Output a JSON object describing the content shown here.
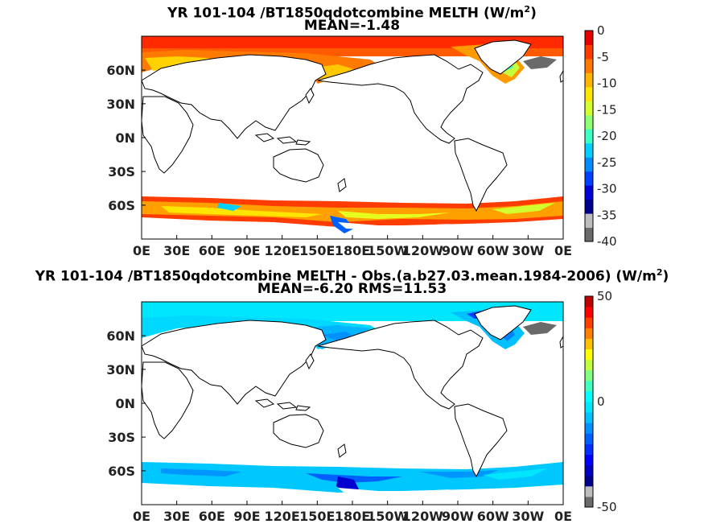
{
  "panels": [
    {
      "title_main": "YR 101-104 /BT1850qdotcombine  MELTH (W/m",
      "title_sup": "2",
      "title_close": ")",
      "subtitle": "MEAN=-1.48",
      "colorbar_ticks": [
        "0",
        "-5",
        "-10",
        "-15",
        "-20",
        "-25",
        "-30",
        "-35",
        "-40"
      ],
      "colorbar_range": [
        -40,
        0
      ],
      "colorbar_colors": [
        "#6a6a6a",
        "#bdbdbd",
        "#00008f",
        "#0000d8",
        "#0040ff",
        "#008cff",
        "#00cfff",
        "#3cffc3",
        "#8cff73",
        "#d2ff2d",
        "#ffe600",
        "#ffb400",
        "#ff7800",
        "#ff3c00",
        "#e60000"
      ]
    },
    {
      "title_main": "YR 101-104 /BT1850qdotcombine MELTH - Obs.(a.b27.03.mean.1984-2006) (W/m",
      "title_sup": "2",
      "title_close": ")",
      "subtitle": "MEAN=-6.20 RMS=11.53",
      "colorbar_ticks": [
        "50",
        "0",
        "-50"
      ],
      "colorbar_range": [
        -50,
        50
      ],
      "colorbar_colors": [
        "#6a6a6a",
        "#bdbdbd",
        "#00008f",
        "#0000c0",
        "#0000ff",
        "#0030ff",
        "#0060ff",
        "#0090ff",
        "#00c0ff",
        "#00e6ff",
        "#00ffff",
        "#40ffbf",
        "#80ff80",
        "#bfff40",
        "#ffff00",
        "#ffc000",
        "#ff8000",
        "#ff4000",
        "#ff0000",
        "#c00000"
      ]
    }
  ],
  "x_ticks": [
    "0E",
    "30E",
    "60E",
    "90E",
    "120E",
    "150E",
    "180E",
    "150W",
    "120W",
    "90W",
    "60W",
    "30W",
    "0E"
  ],
  "y_ticks": [
    "60N",
    "30N",
    "0N",
    "30S",
    "60S"
  ]
}
